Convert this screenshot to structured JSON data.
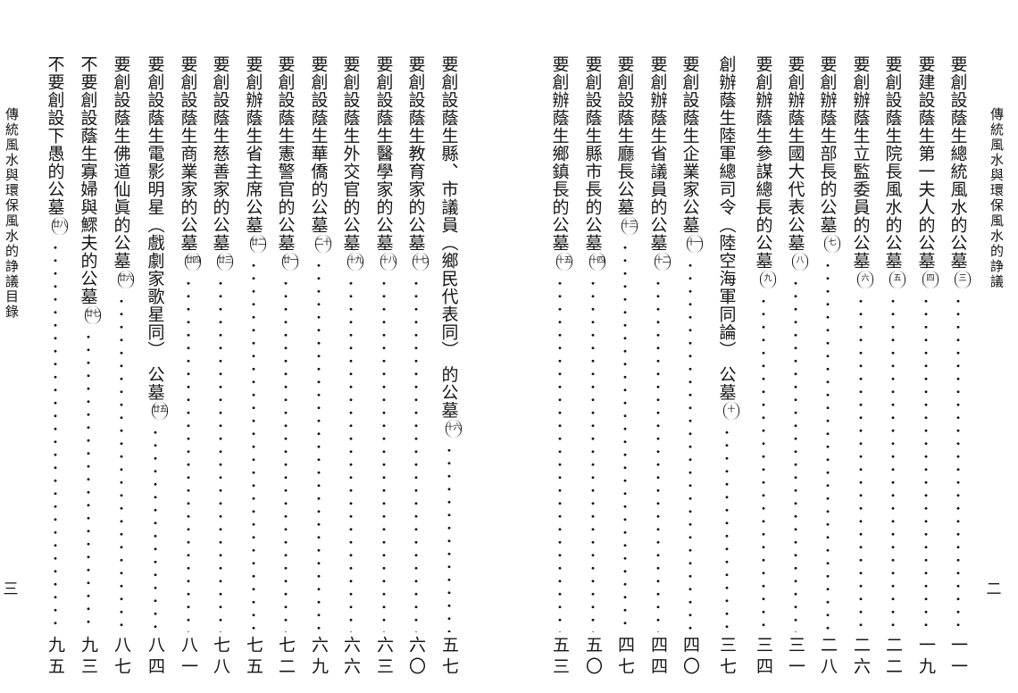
{
  "right_page": {
    "header": "傳統風水與環保風水的諍議",
    "page_number": "二",
    "entries": [
      {
        "title": "要創設蔭生總統風水的公墓",
        "mark": "三",
        "page": "一一"
      },
      {
        "title": "要建設蔭生第一夫人的公墓",
        "mark": "四",
        "page": "一九"
      },
      {
        "title": "要創設蔭生院長風水的公墓",
        "mark": "五",
        "page": "二二"
      },
      {
        "title": "要創辦蔭生立監委員的公墓",
        "mark": "六",
        "page": "二六"
      },
      {
        "title": "要創辦蔭生部長的公墓",
        "mark": "七",
        "page": "二八"
      },
      {
        "title": "要創辦蔭生國大代表公墓",
        "mark": "八",
        "page": "三一"
      },
      {
        "title": "要創辦蔭生參謀總長的公墓",
        "mark": "九",
        "page": "三四"
      },
      {
        "title": "創辦蔭生陸軍總司令（陸空海軍同論） 公墓",
        "mark": "十",
        "page": "三七"
      },
      {
        "title": "要創設蔭生企業家公墓",
        "mark": "十一",
        "page": "四〇"
      },
      {
        "title": "要創辦蔭生省議員的公墓",
        "mark": "十二",
        "page": "四四"
      },
      {
        "title": "要創設蔭生廳長公墓",
        "mark": "十三",
        "page": "四七"
      },
      {
        "title": "要創設蔭生縣市長的公墓",
        "mark": "十四",
        "page": "五〇"
      },
      {
        "title": "要創辦蔭生鄉鎮長的公墓",
        "mark": "十五",
        "page": "五三"
      }
    ]
  },
  "left_page": {
    "header": "傳統風水與環保風水的諍議目錄",
    "page_number": "三",
    "entries": [
      {
        "title": "要創設蔭生縣、市議員（鄉民代表同） 的公墓",
        "mark": "十六",
        "page": "五七"
      },
      {
        "title": "要創設蔭生教育家的公墓",
        "mark": "十七",
        "page": "六〇"
      },
      {
        "title": "要創設蔭生醫學家的公墓",
        "mark": "十八",
        "page": "六三"
      },
      {
        "title": "要創設蔭生外交官的公墓",
        "mark": "十九",
        "page": "六六"
      },
      {
        "title": "要創設蔭生華僑的公墓",
        "mark": "二十",
        "page": "六九"
      },
      {
        "title": "要創設蔭生憲警官的公墓",
        "mark": "廿一",
        "page": "七二"
      },
      {
        "title": "要創辦蔭生省主席公墓",
        "mark": "廿二",
        "page": "七五"
      },
      {
        "title": "要創設蔭生慈善家的公墓",
        "mark": "廿三",
        "page": "七八"
      },
      {
        "title": "要創設蔭生商業家的公墓",
        "mark": "廿四",
        "page": "八一"
      },
      {
        "title": "要創設蔭生電影明星（戲劇家歌星同） 公墓",
        "mark": "廿五",
        "page": "八四"
      },
      {
        "title": "要創設蔭生佛道仙眞的公墓",
        "mark": "廿六",
        "page": "八七"
      },
      {
        "title": "不要創設蔭生寡婦與鰥夫的公墓",
        "mark": "廿七",
        "page": "九三"
      },
      {
        "title": "不要創設下愚的公墓",
        "mark": "廿八",
        "page": "九五"
      }
    ]
  }
}
